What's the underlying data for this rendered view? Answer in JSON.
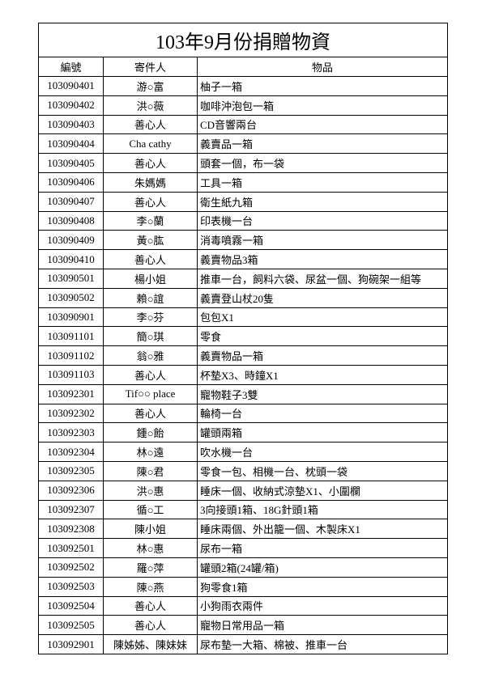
{
  "title": "103年9月份捐贈物資",
  "table": {
    "header": [
      "編號",
      "寄件人",
      "物品"
    ],
    "rows": [
      [
        "103090401",
        "游○富",
        "柚子一箱"
      ],
      [
        "103090402",
        "洪○薇",
        "咖啡沖泡包一箱"
      ],
      [
        "103090403",
        "善心人",
        "CD音響兩台"
      ],
      [
        "103090404",
        "Cha cathy",
        "義賣品一箱"
      ],
      [
        "103090405",
        "善心人",
        "頭套一個，布一袋"
      ],
      [
        "103090406",
        "朱媽媽",
        "工具一箱"
      ],
      [
        "103090407",
        "善心人",
        "衛生紙九箱"
      ],
      [
        "103090408",
        "李○蘭",
        "印表機一台"
      ],
      [
        "103090409",
        "黃○肱",
        "消毒噴霧一箱"
      ],
      [
        "103090410",
        "善心人",
        "義賣物品3箱"
      ],
      [
        "103090501",
        "楊小姐",
        "推車一台，飼料六袋、尿盆一個、狗碗架一組等"
      ],
      [
        "103090502",
        "賴○誼",
        "義賣登山杖20隻"
      ],
      [
        "103090901",
        "李○芬",
        "包包X1"
      ],
      [
        "103091101",
        "簡○琪",
        "零食"
      ],
      [
        "103091102",
        "翁○雅",
        "義賣物品一箱"
      ],
      [
        "103091103",
        "善心人",
        "杯墊X3、時鐘X1"
      ],
      [
        "103092301",
        "Tif○○ place",
        "寵物鞋子3雙"
      ],
      [
        "103092302",
        "善心人",
        "輪椅一台"
      ],
      [
        "103092303",
        "鍾○飴",
        "罐頭兩箱"
      ],
      [
        "103092304",
        "林○遠",
        "吹水機一台"
      ],
      [
        "103092305",
        "陳○君",
        "零食一包、相機一台、枕頭一袋"
      ],
      [
        "103092306",
        "洪○惠",
        "睡床一個、收納式涼墊X1、小圍欄"
      ],
      [
        "103092307",
        "循○工",
        "3向接頭1箱、18G針頭1箱"
      ],
      [
        "103092308",
        "陳小姐",
        "睡床兩個、外出籠一個、木製床X1"
      ],
      [
        "103092501",
        "林○惠",
        "尿布一箱"
      ],
      [
        "103092502",
        "羅○萍",
        "罐頭2箱(24罐/箱)"
      ],
      [
        "103092503",
        "陳○燕",
        "狗零食1箱"
      ],
      [
        "103092504",
        "善心人",
        "小狗雨衣兩件"
      ],
      [
        "103092505",
        "善心人",
        "寵物日常用品一箱"
      ],
      [
        "103092901",
        "陳姊姊、陳妹妹",
        "尿布墊一大箱、棉被、推車一台"
      ]
    ]
  }
}
